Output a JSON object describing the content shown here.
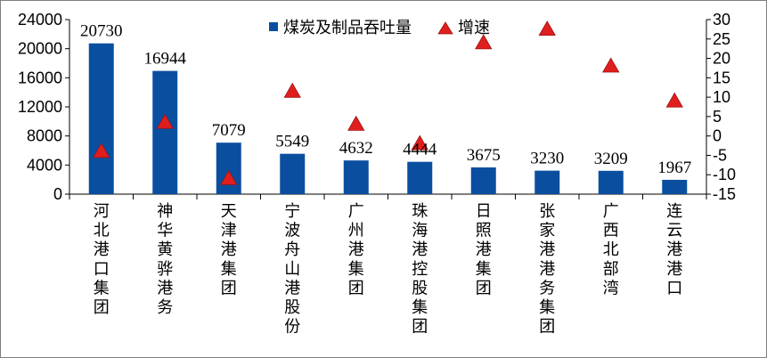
{
  "chart_data": {
    "type": "bar",
    "categories": [
      "河北港口集团",
      "神华黄骅港务",
      "天津港集团",
      "宁波舟山港股份",
      "广州港集团",
      "珠海港控股集团",
      "日照港集团",
      "张家港港务集团",
      "广西北部湾",
      "连云港港口"
    ],
    "series": [
      {
        "name": "煤炭及制品吞吐量",
        "type": "bar",
        "axis": "left",
        "color": "#0a4f9f",
        "values": [
          20730,
          16944,
          7079,
          5549,
          4632,
          4444,
          3675,
          3230,
          3209,
          1967
        ],
        "labels": [
          "20730",
          "16944",
          "7079",
          "5549",
          "4632",
          "4444",
          "3675",
          "3230",
          "3209",
          "1967"
        ]
      },
      {
        "name": "增速",
        "type": "scatter",
        "marker": "triangle",
        "axis": "right",
        "color": "#e01e1e",
        "values": [
          -4,
          3.5,
          -11,
          11.5,
          3,
          -2,
          24,
          27.5,
          18,
          9
        ]
      }
    ],
    "left_axis": {
      "ylim": [
        0,
        24000
      ],
      "ticks": [
        0,
        4000,
        8000,
        12000,
        16000,
        20000,
        24000
      ],
      "tick_labels": [
        "0",
        "4000",
        "8000",
        "12000",
        "16000",
        "20000",
        "24000"
      ]
    },
    "right_axis": {
      "ylim": [
        -15,
        30
      ],
      "ticks": [
        -15,
        -10,
        -5,
        0,
        5,
        10,
        15,
        20,
        25,
        30
      ],
      "tick_labels": [
        "-15",
        "-10",
        "-5",
        "0",
        "5",
        "10",
        "15",
        "20",
        "25",
        "30"
      ]
    },
    "grid": false,
    "legend_position": "top-center"
  }
}
